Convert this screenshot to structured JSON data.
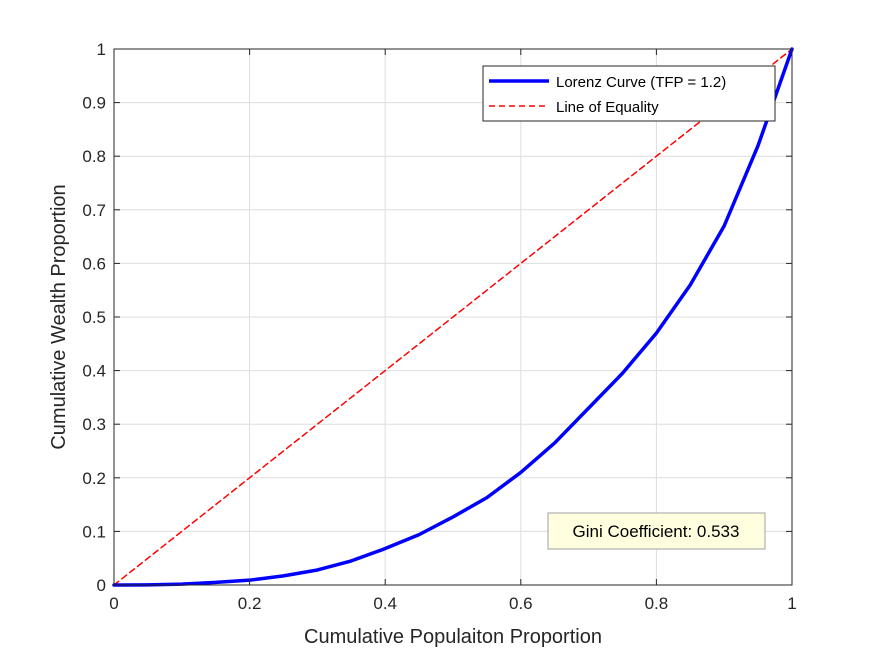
{
  "chart_data": {
    "type": "line",
    "title": "",
    "xlabel": "Cumulative Populaiton Proportion",
    "ylabel": "Cumulative Wealth Proportion",
    "xlim": [
      0,
      1
    ],
    "ylim": [
      0,
      1
    ],
    "x_ticks": [
      "0",
      "0.2",
      "0.4",
      "0.6",
      "0.8",
      "1"
    ],
    "y_ticks": [
      "0",
      "0.1",
      "0.2",
      "0.3",
      "0.4",
      "0.5",
      "0.6",
      "0.7",
      "0.8",
      "0.9",
      "1"
    ],
    "grid": true,
    "legend_position": "top-right",
    "series": [
      {
        "name": "Lorenz Curve (TFP = 1.2)",
        "color": "#0000ff",
        "style": "solid",
        "x": [
          0,
          0.05,
          0.1,
          0.15,
          0.2,
          0.25,
          0.3,
          0.35,
          0.4,
          0.45,
          0.5,
          0.55,
          0.6,
          0.65,
          0.7,
          0.75,
          0.8,
          0.85,
          0.9,
          0.95,
          1.0
        ],
        "y": [
          0,
          0.0002,
          0.0016,
          0.0048,
          0.009,
          0.017,
          0.028,
          0.045,
          0.068,
          0.094,
          0.127,
          0.163,
          0.21,
          0.265,
          0.33,
          0.395,
          0.47,
          0.56,
          0.67,
          0.82,
          1.0
        ]
      },
      {
        "name": "Line of Equality",
        "color": "#ff0000",
        "style": "dashed",
        "x": [
          0,
          1
        ],
        "y": [
          0,
          1
        ]
      }
    ],
    "annotation": {
      "text": "Gini Coefficient: 0.533",
      "x": 0.83,
      "y": 0.1
    }
  }
}
